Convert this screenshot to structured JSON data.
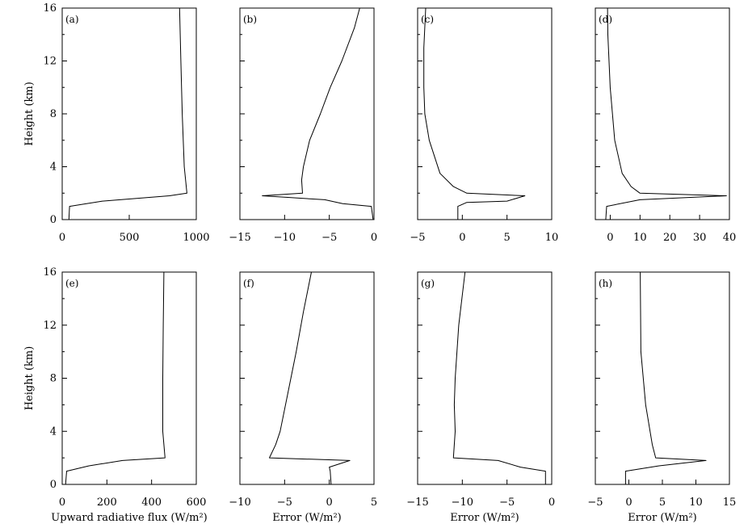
{
  "chart_data": [
    {
      "type": "line",
      "panel_label": "(a)",
      "xlim": [
        0,
        1000
      ],
      "ylim": [
        0,
        16
      ],
      "xticks": [
        "0",
        "500",
        "1000"
      ],
      "yticks": [
        "0",
        "4",
        "8",
        "12",
        "16"
      ],
      "ylabel": "Height (km)",
      "xlabel": "",
      "series": [
        {
          "x": [
            50,
            55,
            300,
            800,
            930,
            910,
            895,
            885,
            880,
            875
          ],
          "y": [
            0,
            1,
            1.4,
            1.8,
            2,
            4,
            8,
            12,
            14,
            16
          ]
        }
      ]
    },
    {
      "type": "line",
      "panel_label": "(b)",
      "xlim": [
        -15,
        0
      ],
      "ylim": [
        0,
        16
      ],
      "xticks": [
        "−15",
        "−10",
        "−5",
        "0"
      ],
      "yticks": [],
      "ylabel": "",
      "xlabel": "",
      "series": [
        {
          "x": [
            -0.1,
            -0.3,
            -3.5,
            -5.5,
            -12.5,
            -8,
            -8.1,
            -7.9,
            -7.2,
            -6,
            -4.9,
            -3.6,
            -2.2,
            -1.6
          ],
          "y": [
            0,
            1,
            1.2,
            1.5,
            1.8,
            2,
            3,
            4,
            6,
            8,
            10,
            12,
            14.5,
            16
          ]
        }
      ]
    },
    {
      "type": "line",
      "panel_label": "(c)",
      "xlim": [
        -5,
        10
      ],
      "ylim": [
        0,
        16
      ],
      "xticks": [
        "−5",
        "0",
        "5",
        "10"
      ],
      "yticks": [],
      "ylabel": "",
      "xlabel": "",
      "series": [
        {
          "x": [
            -0.5,
            -0.5,
            0.5,
            5,
            7,
            0.5,
            -1,
            -2.5,
            -3.7,
            -4.2,
            -4.3,
            -4.3,
            -4.1
          ],
          "y": [
            0,
            1,
            1.3,
            1.4,
            1.8,
            2,
            2.5,
            3.5,
            6,
            8,
            10,
            13,
            16
          ]
        }
      ]
    },
    {
      "type": "line",
      "panel_label": "(d)",
      "xlim": [
        -5,
        40
      ],
      "ylim": [
        0,
        16
      ],
      "xticks": [
        "0",
        "10",
        "20",
        "30",
        "40"
      ],
      "yticks": [],
      "ylabel": "",
      "xlabel": "",
      "series": [
        {
          "x": [
            -1.5,
            -1.2,
            10,
            39,
            10,
            7,
            4,
            1.5,
            0,
            -0.8,
            -0.9
          ],
          "y": [
            0,
            1,
            1.5,
            1.8,
            2,
            2.5,
            3.5,
            6,
            10,
            14,
            16
          ]
        }
      ]
    },
    {
      "type": "line",
      "panel_label": "(e)",
      "xlim": [
        0,
        600
      ],
      "ylim": [
        0,
        16
      ],
      "xticks": [
        "0",
        "200",
        "400",
        "600"
      ],
      "yticks": [
        "0",
        "4",
        "8",
        "12",
        "16"
      ],
      "ylabel": "Height (km)",
      "xlabel": "Upward radiative flux (W/m²)",
      "series": [
        {
          "x": [
            15,
            20,
            120,
            270,
            460,
            450,
            450,
            452,
            455
          ],
          "y": [
            0,
            1,
            1.4,
            1.8,
            2,
            4,
            8,
            12,
            16
          ]
        }
      ]
    },
    {
      "type": "line",
      "panel_label": "(f)",
      "xlim": [
        -10,
        5
      ],
      "ylim": [
        0,
        16
      ],
      "xticks": [
        "−10",
        "−5",
        "0",
        "5"
      ],
      "yticks": [],
      "ylabel": "",
      "xlabel": "Error (W/m²)",
      "series": [
        {
          "x": [
            0.2,
            0.1,
            0,
            2.3,
            -6.7,
            -6,
            -5.5,
            -4.6,
            -3.7,
            -2.9,
            -2
          ],
          "y": [
            0,
            1,
            1.3,
            1.8,
            2,
            3,
            4,
            7,
            10,
            13,
            16
          ]
        }
      ]
    },
    {
      "type": "line",
      "panel_label": "(g)",
      "xlim": [
        -15,
        0
      ],
      "ylim": [
        0,
        16
      ],
      "xticks": [
        "−15",
        "−10",
        "−5",
        "0"
      ],
      "yticks": [],
      "ylabel": "",
      "xlabel": "Error (W/m²)",
      "series": [
        {
          "x": [
            -0.7,
            -0.7,
            -3.5,
            -6,
            -11,
            -10.8,
            -10.9,
            -10.8,
            -10.4,
            -9.7
          ],
          "y": [
            0,
            1,
            1.3,
            1.8,
            2,
            4,
            6,
            8,
            12,
            16
          ]
        }
      ]
    },
    {
      "type": "line",
      "panel_label": "(h)",
      "xlim": [
        -5,
        15
      ],
      "ylim": [
        0,
        16
      ],
      "xticks": [
        "−5",
        "0",
        "5",
        "10",
        "15"
      ],
      "yticks": [],
      "ylabel": "",
      "xlabel": "Error (W/m²)",
      "series": [
        {
          "x": [
            -0.5,
            -0.5,
            4.5,
            11.5,
            4,
            3.5,
            2.5,
            1.8,
            1.7
          ],
          "y": [
            0,
            1,
            1.4,
            1.8,
            2,
            3,
            6,
            10,
            16
          ]
        }
      ]
    }
  ]
}
